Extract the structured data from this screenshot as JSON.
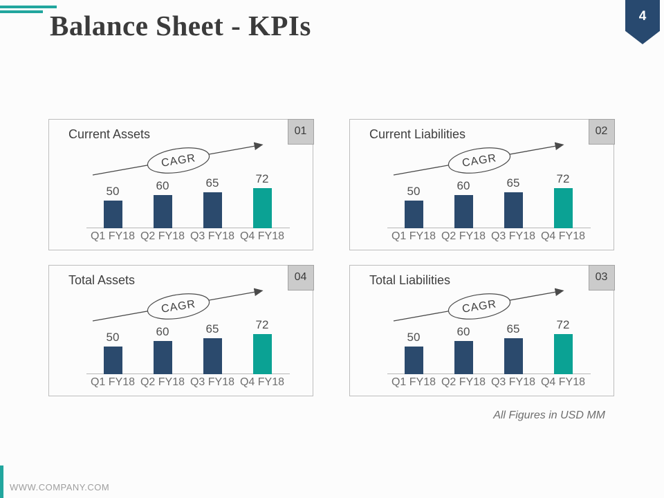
{
  "slide": {
    "title": "Balance Sheet - KPIs",
    "page_number": "4",
    "footnote": "All Figures in USD MM",
    "footer_url": "WWW.COMPANY.COM"
  },
  "colors": {
    "bar_navy": "#2B4A6D",
    "bar_teal": "#0BA294",
    "accent_teal": "#21A69E",
    "page_badge_bg": "#28496F",
    "panel_badge_bg": "#CBCBCB"
  },
  "panels": [
    {
      "title": "Current Assets",
      "badge": "01"
    },
    {
      "title": "Current Liabilities",
      "badge": "02"
    },
    {
      "title": "Total Assets",
      "badge": "04"
    },
    {
      "title": "Total Liabilities",
      "badge": "03"
    }
  ],
  "chart_data": [
    {
      "type": "bar",
      "title": "Current Assets",
      "categories": [
        "Q1 FY18",
        "Q2 FY18",
        "Q3 FY18",
        "Q4 FY18"
      ],
      "values": [
        50,
        60,
        65,
        72
      ],
      "data_labels": true,
      "annotation": "CAGR",
      "trend": "up",
      "bar_colors": [
        "#2B4A6D",
        "#2B4A6D",
        "#2B4A6D",
        "#0BA294"
      ],
      "ylim": [
        0,
        80
      ],
      "unit": "USD MM"
    },
    {
      "type": "bar",
      "title": "Current Liabilities",
      "categories": [
        "Q1 FY18",
        "Q2 FY18",
        "Q3 FY18",
        "Q4 FY18"
      ],
      "values": [
        50,
        60,
        65,
        72
      ],
      "data_labels": true,
      "annotation": "CAGR",
      "trend": "up",
      "bar_colors": [
        "#2B4A6D",
        "#2B4A6D",
        "#2B4A6D",
        "#0BA294"
      ],
      "ylim": [
        0,
        80
      ],
      "unit": "USD MM"
    },
    {
      "type": "bar",
      "title": "Total Assets",
      "categories": [
        "Q1 FY18",
        "Q2 FY18",
        "Q3 FY18",
        "Q4 FY18"
      ],
      "values": [
        50,
        60,
        65,
        72
      ],
      "data_labels": true,
      "annotation": "CAGR",
      "trend": "up",
      "bar_colors": [
        "#2B4A6D",
        "#2B4A6D",
        "#2B4A6D",
        "#0BA294"
      ],
      "ylim": [
        0,
        80
      ],
      "unit": "USD MM"
    },
    {
      "type": "bar",
      "title": "Total Liabilities",
      "categories": [
        "Q1 FY18",
        "Q2 FY18",
        "Q3 FY18",
        "Q4 FY18"
      ],
      "values": [
        50,
        60,
        65,
        72
      ],
      "data_labels": true,
      "annotation": "CAGR",
      "trend": "up",
      "bar_colors": [
        "#2B4A6D",
        "#2B4A6D",
        "#2B4A6D",
        "#0BA294"
      ],
      "ylim": [
        0,
        80
      ],
      "unit": "USD MM"
    }
  ]
}
